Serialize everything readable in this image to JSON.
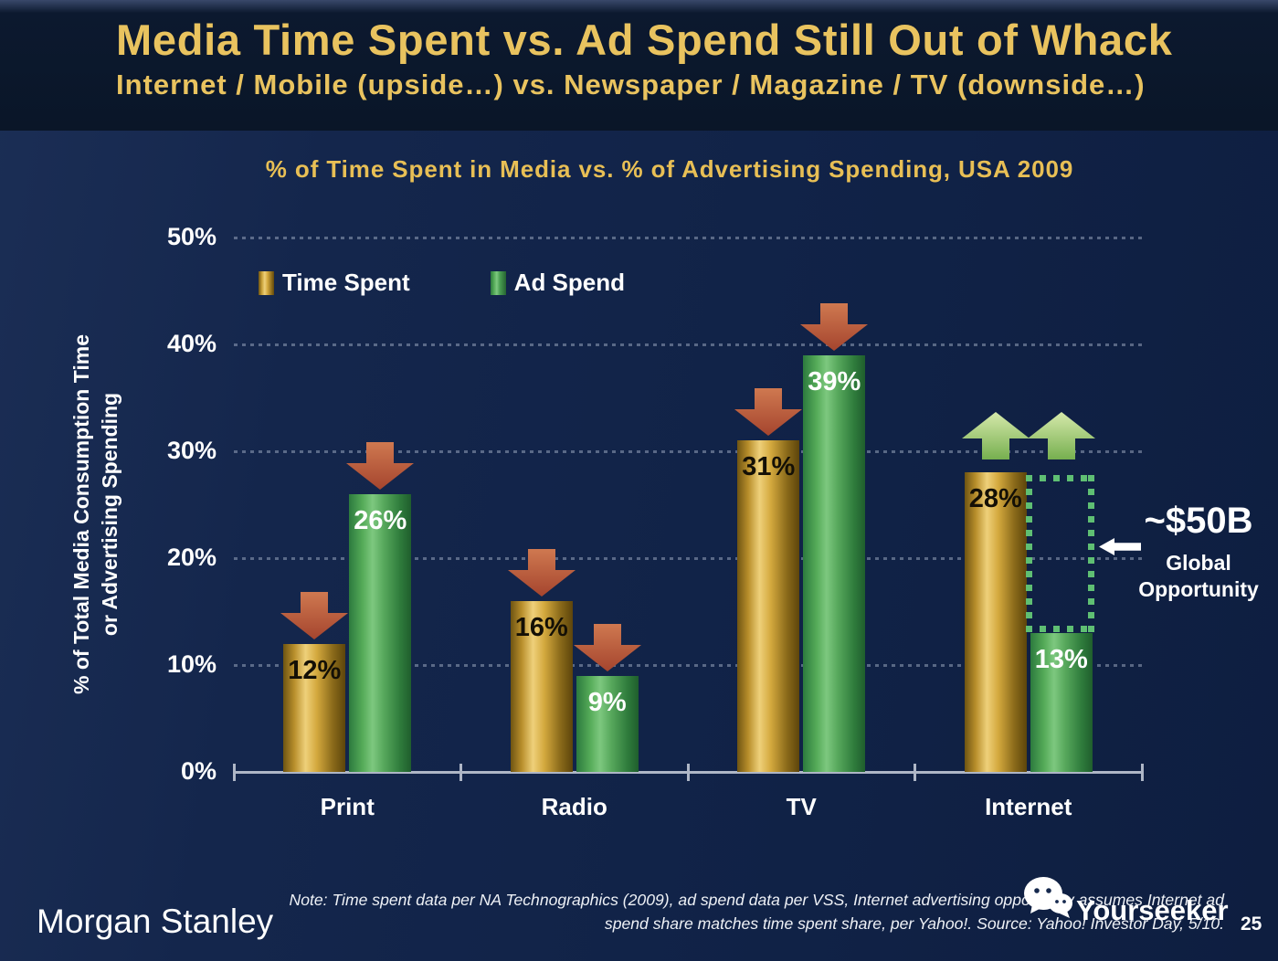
{
  "header": {
    "title": "Media Time Spent vs. Ad Spend Still Out of Whack",
    "subtitle": "Internet / Mobile (upside…) vs. Newspaper / Magazine / TV (downside…)"
  },
  "chart_data": {
    "type": "bar",
    "title": "% of Time Spent in Media vs. % of Advertising Spending, USA 2009",
    "categories": [
      "Print",
      "Radio",
      "TV",
      "Internet"
    ],
    "series": [
      {
        "name": "Time Spent",
        "color_key": "gold",
        "values": [
          12,
          16,
          31,
          28
        ]
      },
      {
        "name": "Ad Spend",
        "color_key": "green",
        "values": [
          26,
          9,
          39,
          13
        ]
      }
    ],
    "unit": "%",
    "ylabel_lines": [
      "% of Total Media Consumption Time",
      "or Advertising Spending"
    ],
    "yticks": [
      "0%",
      "10%",
      "20%",
      "30%",
      "40%",
      "50%"
    ],
    "ylim": [
      0,
      50
    ],
    "grid": "dotted-horizontal",
    "legend_position": "top-left",
    "trend_arrows": {
      "Print": [
        "down",
        "down"
      ],
      "Radio": [
        "down",
        "down"
      ],
      "TV": [
        "down",
        "down"
      ],
      "Internet": [
        "up",
        "up"
      ]
    },
    "annotation": {
      "headline": "~$50B",
      "line1": "Global",
      "line2": "Opportunity"
    }
  },
  "footer": {
    "brand": "Morgan Stanley",
    "note_line1": "Note: Time spent data per NA Technographics (2009), ad spend data per VSS, Internet advertising opportunity assumes Internet ad",
    "note_line2": "spend share matches time spent share, per Yahoo!. Source: Yahoo! Investor Day, 5/10.",
    "page_number": "25",
    "watermark": "Yourseeker"
  },
  "colors": {
    "background_navy": "#122448",
    "header_navy": "#0a1628",
    "title_gold": "#e9c35f",
    "bar_gold": "#d4a93e",
    "bar_green": "#57a85c",
    "arrow_down_red": "#c4603d",
    "arrow_up_green": "#a8cc78",
    "dashed_box_green": "#5fbf73",
    "axis_gray": "#aeb6c6",
    "text_white": "#ffffff"
  }
}
